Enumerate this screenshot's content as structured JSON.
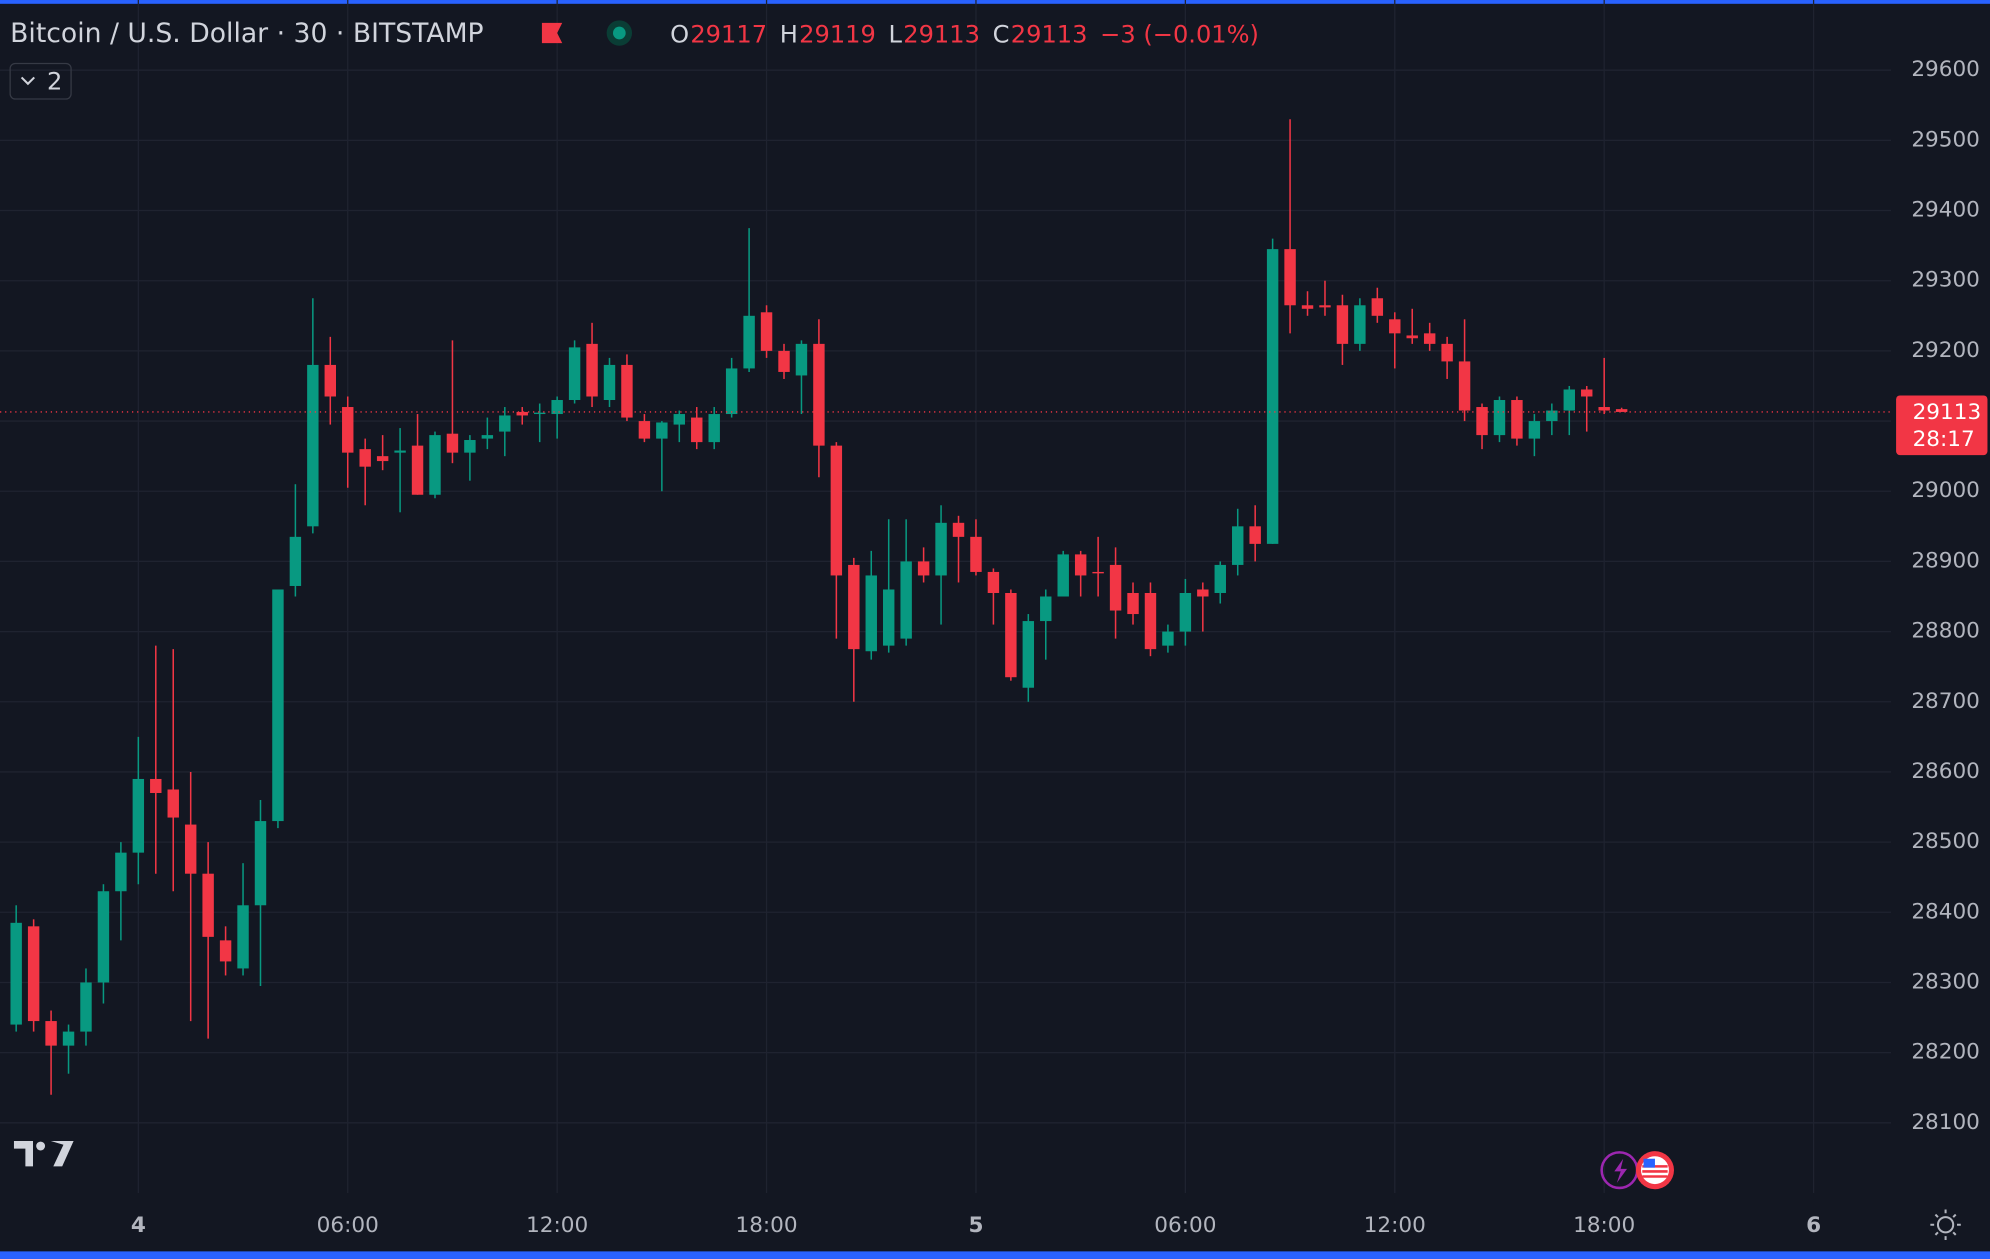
{
  "header": {
    "title": "Bitcoin / U.S. Dollar · 30 · BITSTAMP",
    "ohlc": [
      {
        "label": "O",
        "value": 29117
      },
      {
        "label": "H",
        "value": 29119
      },
      {
        "label": "L",
        "value": 29113
      },
      {
        "label": "C",
        "value": 29113
      }
    ],
    "change": "−3 (−0.01%)",
    "indicators": "2"
  },
  "chart_data": {
    "type": "candlestick",
    "categories": [
      null,
      null,
      null,
      null,
      null,
      null,
      null,
      "4",
      null,
      null,
      null,
      null,
      null,
      null,
      null,
      null,
      null,
      null,
      null,
      "06:00",
      null,
      null,
      null,
      null,
      null,
      null,
      null,
      null,
      null,
      null,
      null,
      "12:00",
      null,
      null,
      null,
      null,
      null,
      null,
      null,
      null,
      null,
      null,
      null,
      "18:00",
      null,
      null,
      null,
      null,
      null,
      null,
      null,
      null,
      null,
      null,
      null,
      "5",
      null,
      null,
      null,
      null,
      null,
      null,
      null,
      null,
      null,
      null,
      null,
      "06:00",
      null,
      null,
      null,
      null,
      null,
      null,
      null,
      null,
      null,
      null,
      null,
      "12:00",
      null,
      null,
      null,
      null,
      null,
      null,
      null,
      null,
      null,
      null,
      null,
      "18:00",
      null,
      null,
      null,
      null,
      null,
      null,
      null,
      null,
      null,
      null,
      null,
      "6"
    ],
    "open": [
      28240,
      28380,
      28245,
      28210,
      28230,
      28300,
      28430,
      28485,
      28590,
      28575,
      28525,
      28455,
      28360,
      28320,
      28410,
      28530,
      28865,
      28950,
      29180,
      29120,
      29060,
      29050,
      29055,
      29065,
      28995,
      29082,
      29055,
      29075,
      29085,
      29113,
      29110,
      29110,
      29130,
      29210,
      29130,
      29180,
      29100,
      29075,
      29095,
      29105,
      29070,
      29110,
      29175,
      29255,
      29200,
      29165,
      29210,
      29065,
      28895,
      28772,
      28780,
      28790,
      28900,
      28880,
      28955,
      28935,
      28885,
      28855,
      28720,
      28815,
      28850,
      28910,
      28885,
      28895,
      28855,
      28855,
      28780,
      28800,
      28860,
      28855,
      28895,
      28950,
      28925,
      29345,
      29265,
      29265,
      29265,
      29210,
      29275,
      29245,
      29222,
      29225,
      29210,
      29185,
      29120,
      29080,
      29130,
      29075,
      29100,
      29115,
      29145,
      29120,
      29117,
      null,
      null,
      null,
      null,
      null,
      null,
      null,
      null,
      null,
      null,
      null
    ],
    "high": [
      28410,
      28390,
      28260,
      28240,
      28320,
      28440,
      28500,
      28650,
      28780,
      28775,
      28600,
      28500,
      28380,
      28470,
      28560,
      28860,
      29010,
      29275,
      29220,
      29135,
      29075,
      29080,
      29090,
      29110,
      29085,
      29215,
      29080,
      29105,
      29120,
      29120,
      29125,
      29135,
      29215,
      29240,
      29190,
      29195,
      29110,
      29100,
      29115,
      29120,
      29120,
      29190,
      29375,
      29265,
      29210,
      29215,
      29245,
      29070,
      28905,
      28915,
      28960,
      28960,
      28920,
      28980,
      28965,
      28960,
      28890,
      28860,
      28825,
      28860,
      28915,
      28915,
      28935,
      28920,
      28870,
      28870,
      28810,
      28875,
      28870,
      28900,
      28975,
      28980,
      29360,
      29530,
      29285,
      29300,
      29280,
      29275,
      29290,
      29255,
      29260,
      29240,
      29220,
      29245,
      29125,
      29135,
      29135,
      29110,
      29125,
      29150,
      29150,
      29190,
      29119,
      null,
      null,
      null,
      null,
      null,
      null,
      null,
      null,
      null,
      null,
      null
    ],
    "low": [
      28230,
      28230,
      28140,
      28170,
      28210,
      28270,
      28360,
      28440,
      28455,
      28430,
      28245,
      28220,
      28310,
      28310,
      28295,
      28520,
      28850,
      28940,
      29095,
      29005,
      28980,
      29030,
      28970,
      28995,
      28990,
      29040,
      29015,
      29060,
      29050,
      29095,
      29070,
      29075,
      29125,
      29120,
      29120,
      29100,
      29070,
      29000,
      29070,
      29060,
      29060,
      29105,
      29170,
      29190,
      29160,
      29110,
      29020,
      28790,
      28700,
      28760,
      28770,
      28780,
      28870,
      28810,
      28870,
      28880,
      28810,
      28730,
      28700,
      28760,
      28850,
      28850,
      28850,
      28790,
      28810,
      28765,
      28770,
      28780,
      28800,
      28840,
      28880,
      28900,
      28925,
      29225,
      29250,
      29250,
      29180,
      29200,
      29240,
      29175,
      29210,
      29200,
      29160,
      29100,
      29060,
      29070,
      29065,
      29050,
      29080,
      29080,
      29085,
      29110,
      29113,
      null,
      null,
      null,
      null,
      null,
      null,
      null,
      null,
      null,
      null,
      null
    ],
    "close": [
      28385,
      28245,
      28210,
      28230,
      28300,
      28430,
      28485,
      28590,
      28570,
      28535,
      28455,
      28365,
      28330,
      28410,
      28530,
      28860,
      28935,
      29180,
      29135,
      29055,
      29035,
      29043,
      29058,
      28995,
      29080,
      29055,
      29073,
      29080,
      29108,
      29108,
      29112,
      29130,
      29205,
      29135,
      29180,
      29105,
      29075,
      29098,
      29110,
      29070,
      29110,
      29175,
      29250,
      29200,
      29170,
      29210,
      29065,
      28880,
      28775,
      28880,
      28860,
      28900,
      28880,
      28955,
      28935,
      28885,
      28855,
      28735,
      28815,
      28850,
      28910,
      28880,
      28883,
      28830,
      28825,
      28775,
      28800,
      28855,
      28850,
      28895,
      28950,
      28925,
      29345,
      29265,
      29260,
      29262,
      29210,
      29265,
      29250,
      29225,
      29218,
      29210,
      29185,
      29115,
      29080,
      29130,
      29075,
      29100,
      29115,
      29145,
      29135,
      29115,
      29113,
      null,
      null,
      null,
      null,
      null,
      null,
      null,
      null,
      null,
      null,
      null
    ],
    "up_color": "#089981",
    "down_color": "#f23645",
    "last_price": 29113,
    "countdown": "28:17",
    "ylim": [
      28000,
      29700
    ],
    "yticks": [
      28100,
      28200,
      28300,
      28400,
      28500,
      28600,
      28700,
      28800,
      28900,
      29000,
      29100,
      29200,
      29300,
      29400,
      29500,
      29600
    ],
    "grid": true
  }
}
